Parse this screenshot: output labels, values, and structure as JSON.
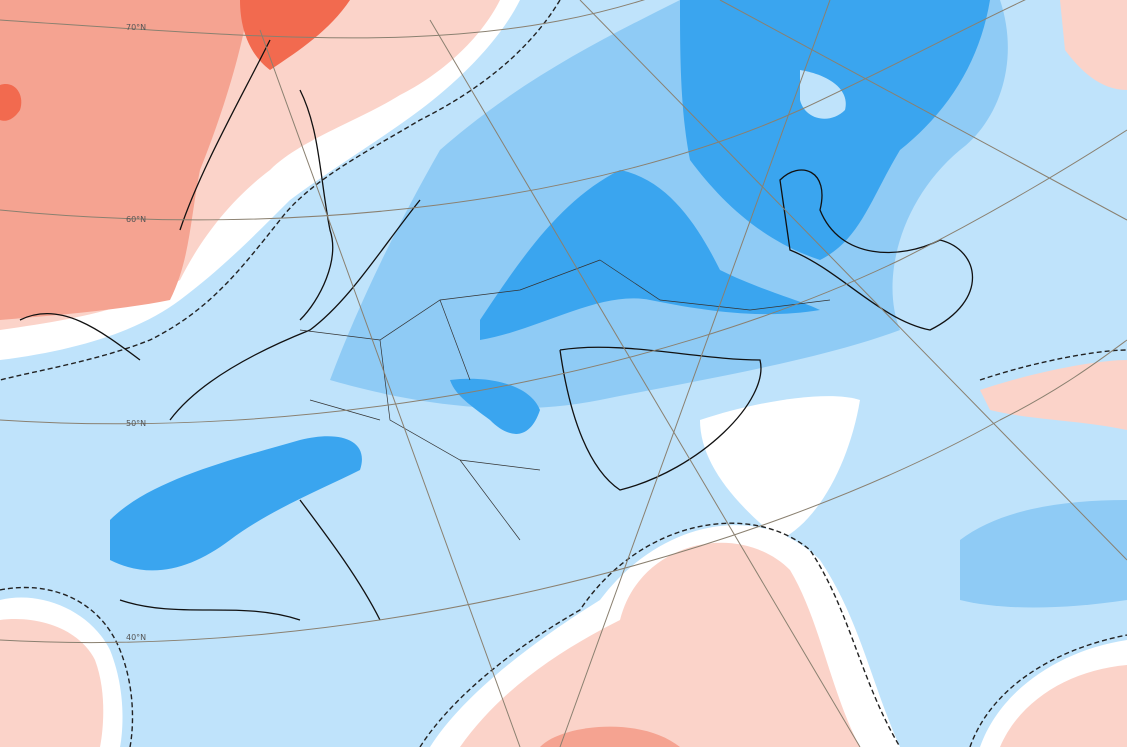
{
  "map": {
    "graticule_labels": [
      "70°N",
      "60°N",
      "50°N",
      "40°N"
    ]
  }
}
